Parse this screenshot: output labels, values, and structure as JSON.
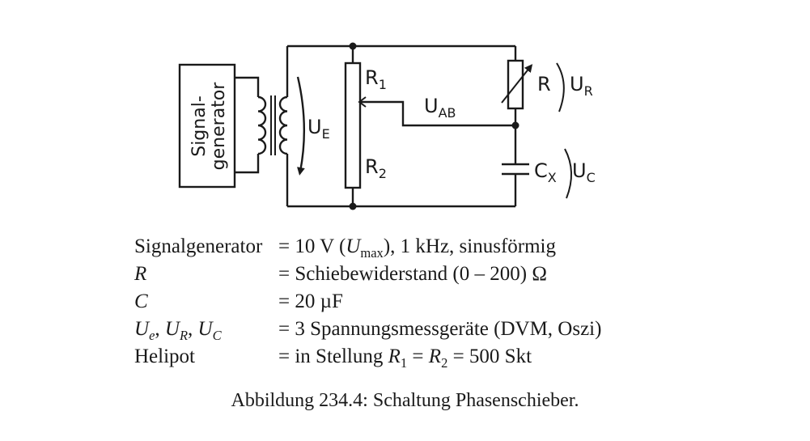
{
  "diagram": {
    "generator_label_1": "Signal-",
    "generator_label_2": "generator",
    "U_E": "U",
    "U_E_sub": "E",
    "R1": "R",
    "R1_sub": "1",
    "R2": "R",
    "R2_sub": "2",
    "U_AB": "U",
    "U_AB_sub": "AB",
    "R": "R",
    "U_R": "U",
    "U_R_sub": "R",
    "C_X": "C",
    "C_X_sub": "X",
    "U_C": "U",
    "U_C_sub": "C"
  },
  "spec": {
    "row1_key": "Signalgenerator",
    "row1_val_a": "= 10 V (",
    "row1_val_U": "U",
    "row1_val_sub": "max",
    "row1_val_b": "), 1 kHz, sinusförmig",
    "row2_key": "R",
    "row2_val": "= Schiebewiderstand (0 – 200) Ω",
    "row3_key": "C",
    "row3_val": "= 20 µF",
    "row4_key_U1": "U",
    "row4_key_s1": "e",
    "row4_key_sep1": ", ",
    "row4_key_U2": "U",
    "row4_key_s2": "R",
    "row4_key_sep2": ", ",
    "row4_key_U3": "U",
    "row4_key_s3": "C",
    "row4_val": "= 3 Spannungsmessgeräte (DVM, Oszi)",
    "row5_key": "Helipot",
    "row5_val_a": "= in Stellung ",
    "row5_val_R1": "R",
    "row5_val_s1": "1",
    "row5_val_eq": " = ",
    "row5_val_R2": "R",
    "row5_val_s2": "2",
    "row5_val_b": " = 500 Skt"
  },
  "caption": "Abbildung 234.4: Schaltung Phasenschieber."
}
